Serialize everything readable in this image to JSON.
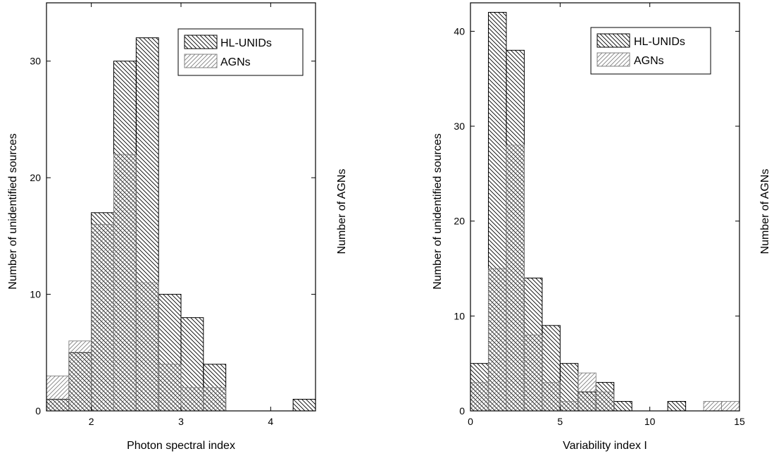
{
  "chart_data": [
    {
      "type": "bar",
      "xlabel": "Photon spectral index",
      "ylabel": "Number of unidentified sources",
      "ylabel_right": "Number of AGNs",
      "xlim": [
        1.5,
        4.5
      ],
      "ylim": [
        0,
        35
      ],
      "xticks": [
        2,
        3,
        4
      ],
      "yticks": [
        0,
        10,
        20,
        30
      ],
      "bin_width": 0.25,
      "legend_position": "top-right",
      "series": [
        {
          "name": "HL-UNIDs",
          "pattern": "back-diagonal-hatch",
          "color": "#000000",
          "bins": [
            [
              1.5,
              1
            ],
            [
              1.75,
              5
            ],
            [
              2.0,
              17
            ],
            [
              2.25,
              30
            ],
            [
              2.5,
              32
            ],
            [
              2.75,
              10
            ],
            [
              3.0,
              8
            ],
            [
              3.25,
              4
            ],
            [
              4.25,
              1
            ]
          ]
        },
        {
          "name": "AGNs",
          "pattern": "forward-diagonal-hatch",
          "color": "#808080",
          "bins": [
            [
              1.5,
              3
            ],
            [
              1.75,
              6
            ],
            [
              2.0,
              16
            ],
            [
              2.25,
              22
            ],
            [
              2.5,
              11
            ],
            [
              2.75,
              4
            ],
            [
              3.0,
              2
            ],
            [
              3.25,
              2
            ]
          ]
        }
      ]
    },
    {
      "type": "bar",
      "xlabel": "Variability index I",
      "ylabel": "Number of unidentified sources",
      "ylabel_right": "Number of AGNs",
      "xlim": [
        0,
        15
      ],
      "ylim": [
        0,
        43
      ],
      "xticks": [
        0,
        5,
        10,
        15
      ],
      "yticks": [
        0,
        10,
        20,
        30,
        40
      ],
      "bin_width": 1,
      "legend_position": "top-right",
      "series": [
        {
          "name": "HL-UNIDs",
          "pattern": "back-diagonal-hatch",
          "color": "#000000",
          "bins": [
            [
              0,
              5
            ],
            [
              1,
              42
            ],
            [
              2,
              38
            ],
            [
              3,
              14
            ],
            [
              4,
              9
            ],
            [
              5,
              5
            ],
            [
              6,
              2
            ],
            [
              7,
              3
            ],
            [
              8,
              1
            ],
            [
              11,
              1
            ]
          ]
        },
        {
          "name": "AGNs",
          "pattern": "forward-diagonal-hatch",
          "color": "#808080",
          "bins": [
            [
              0,
              3
            ],
            [
              1,
              15
            ],
            [
              2,
              28
            ],
            [
              3,
              8
            ],
            [
              4,
              3
            ],
            [
              5,
              1
            ],
            [
              6,
              4
            ],
            [
              7,
              2
            ],
            [
              13,
              1
            ],
            [
              14,
              1
            ]
          ]
        }
      ]
    }
  ]
}
